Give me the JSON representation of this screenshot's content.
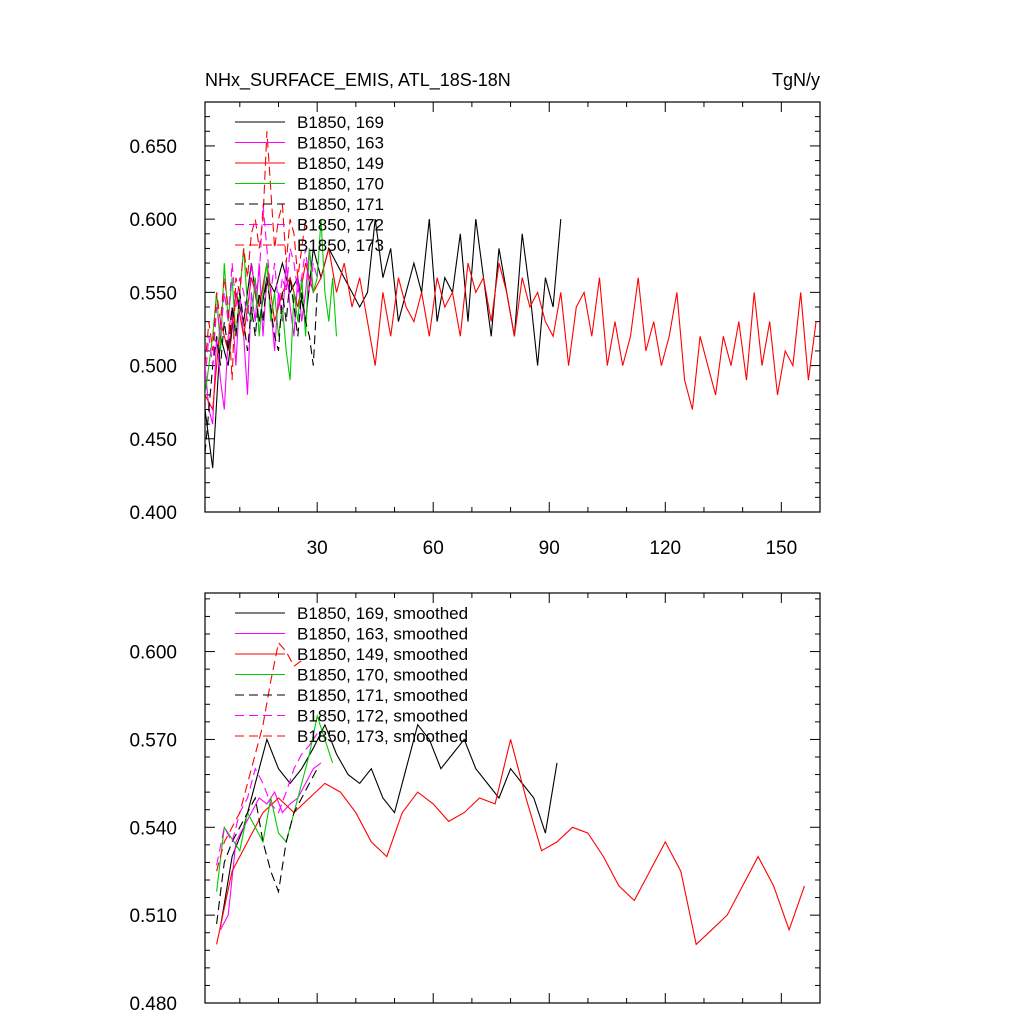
{
  "chart_data": [
    {
      "type": "line",
      "title": "NHx_SURFACE_EMIS, ATL_18S-18N",
      "units": "TgN/y",
      "xlim": [
        1,
        160
      ],
      "ylim": [
        0.4,
        0.68
      ],
      "x_ticks": [
        30,
        60,
        90,
        120,
        150
      ],
      "y_ticks": [
        0.4,
        0.45,
        0.5,
        0.55,
        0.6,
        0.65
      ],
      "y_tick_labels": [
        "0.400",
        "0.450",
        "0.500",
        "0.550",
        "0.600",
        "0.650"
      ],
      "x_tick_labels": [
        "30",
        "60",
        "90",
        "120",
        "150"
      ],
      "legend_position": "top-left",
      "grid": false,
      "series": [
        {
          "name": "B1850, 169",
          "color": "#000000",
          "dash": "solid",
          "x": [
            1,
            3,
            5,
            7,
            9,
            11,
            13,
            15,
            17,
            19,
            21,
            23,
            25,
            27,
            29,
            31,
            33,
            35,
            37,
            39,
            41,
            43,
            45,
            47,
            49,
            51,
            53,
            55,
            57,
            59,
            61,
            63,
            65,
            67,
            69,
            71,
            73,
            75,
            77,
            79,
            81,
            83,
            85,
            87,
            89,
            91,
            93
          ],
          "values": [
            0.47,
            0.43,
            0.52,
            0.5,
            0.55,
            0.53,
            0.57,
            0.53,
            0.56,
            0.55,
            0.57,
            0.55,
            0.56,
            0.53,
            0.58,
            0.56,
            0.58,
            0.57,
            0.56,
            0.55,
            0.54,
            0.55,
            0.6,
            0.56,
            0.58,
            0.53,
            0.55,
            0.57,
            0.55,
            0.6,
            0.53,
            0.56,
            0.55,
            0.59,
            0.53,
            0.6,
            0.56,
            0.52,
            0.58,
            0.55,
            0.52,
            0.59,
            0.55,
            0.5,
            0.56,
            0.54,
            0.6
          ]
        },
        {
          "name": "B1850, 163",
          "color": "#ff00ff",
          "dash": "solid",
          "x": [
            1,
            2,
            3,
            4,
            5,
            6,
            7,
            8,
            9,
            10,
            11,
            12,
            13,
            14,
            15,
            16,
            17,
            18,
            19,
            20,
            21,
            22,
            23,
            24,
            25,
            26,
            27,
            28,
            29
          ],
          "values": [
            0.5,
            0.47,
            0.46,
            0.52,
            0.49,
            0.47,
            0.52,
            0.54,
            0.5,
            0.55,
            0.52,
            0.48,
            0.55,
            0.53,
            0.57,
            0.52,
            0.56,
            0.54,
            0.51,
            0.55,
            0.53,
            0.57,
            0.54,
            0.52,
            0.56,
            0.53,
            0.55,
            0.58,
            0.55
          ]
        },
        {
          "name": "B1850, 149",
          "color": "#ff0000",
          "dash": "solid",
          "x": [
            1,
            3,
            5,
            7,
            9,
            11,
            13,
            15,
            17,
            19,
            21,
            23,
            25,
            27,
            29,
            31,
            33,
            35,
            37,
            39,
            41,
            43,
            45,
            47,
            49,
            51,
            53,
            55,
            57,
            59,
            61,
            63,
            65,
            67,
            69,
            71,
            73,
            75,
            77,
            79,
            81,
            83,
            85,
            87,
            89,
            91,
            93,
            95,
            97,
            99,
            101,
            103,
            105,
            107,
            109,
            111,
            113,
            115,
            117,
            119,
            121,
            123,
            125,
            127,
            129,
            131,
            133,
            135,
            137,
            139,
            141,
            143,
            145,
            147,
            149,
            151,
            153,
            155,
            157,
            159
          ],
          "values": [
            0.48,
            0.47,
            0.53,
            0.51,
            0.55,
            0.52,
            0.56,
            0.54,
            0.57,
            0.53,
            0.55,
            0.56,
            0.54,
            0.57,
            0.55,
            0.56,
            0.58,
            0.55,
            0.57,
            0.54,
            0.56,
            0.53,
            0.5,
            0.55,
            0.52,
            0.56,
            0.54,
            0.53,
            0.55,
            0.52,
            0.56,
            0.54,
            0.55,
            0.52,
            0.57,
            0.55,
            0.56,
            0.53,
            0.57,
            0.55,
            0.52,
            0.56,
            0.54,
            0.55,
            0.53,
            0.52,
            0.55,
            0.5,
            0.54,
            0.55,
            0.52,
            0.56,
            0.5,
            0.53,
            0.5,
            0.52,
            0.56,
            0.51,
            0.53,
            0.5,
            0.52,
            0.55,
            0.49,
            0.47,
            0.52,
            0.5,
            0.48,
            0.52,
            0.5,
            0.53,
            0.49,
            0.55,
            0.5,
            0.53,
            0.48,
            0.51,
            0.5,
            0.55,
            0.49,
            0.53
          ]
        },
        {
          "name": "B1850, 170",
          "color": "#00cc00",
          "dash": "solid",
          "x": [
            1,
            2,
            3,
            4,
            5,
            6,
            7,
            8,
            9,
            10,
            11,
            12,
            13,
            14,
            15,
            16,
            17,
            18,
            19,
            20,
            21,
            22,
            23,
            24,
            25,
            26,
            27,
            28,
            29,
            30,
            31,
            32,
            33,
            34,
            35
          ],
          "values": [
            0.48,
            0.5,
            0.52,
            0.55,
            0.51,
            0.57,
            0.53,
            0.56,
            0.52,
            0.55,
            0.58,
            0.54,
            0.53,
            0.56,
            0.52,
            0.55,
            0.57,
            0.53,
            0.55,
            0.52,
            0.54,
            0.51,
            0.49,
            0.55,
            0.53,
            0.56,
            0.52,
            0.58,
            0.55,
            0.56,
            0.6,
            0.55,
            0.53,
            0.56,
            0.52
          ]
        },
        {
          "name": "B1850, 171",
          "color": "#000000",
          "dash": "dash",
          "x": [
            1,
            2,
            3,
            4,
            5,
            6,
            7,
            8,
            9,
            10,
            11,
            12,
            13,
            14,
            15,
            16,
            17,
            18,
            19,
            20,
            21,
            22,
            23,
            24,
            25,
            26,
            27,
            28,
            29,
            30
          ],
          "values": [
            0.44,
            0.47,
            0.5,
            0.52,
            0.5,
            0.53,
            0.51,
            0.54,
            0.52,
            0.55,
            0.53,
            0.51,
            0.54,
            0.52,
            0.55,
            0.53,
            0.56,
            0.54,
            0.52,
            0.51,
            0.55,
            0.53,
            0.56,
            0.54,
            0.52,
            0.55,
            0.53,
            0.52,
            0.5,
            0.55
          ]
        },
        {
          "name": "B1850, 172",
          "color": "#ff00ff",
          "dash": "dash",
          "x": [
            1,
            2,
            3,
            4,
            5,
            6,
            7,
            8,
            9,
            10,
            11,
            12,
            13,
            14,
            15,
            16,
            17,
            18,
            19,
            20,
            21,
            22,
            23,
            24,
            25,
            26,
            27,
            28,
            29,
            30
          ],
          "values": [
            0.49,
            0.52,
            0.5,
            0.54,
            0.52,
            0.55,
            0.53,
            0.57,
            0.54,
            0.56,
            0.55,
            0.53,
            0.57,
            0.55,
            0.56,
            0.61,
            0.58,
            0.55,
            0.57,
            0.54,
            0.56,
            0.55,
            0.58,
            0.57,
            0.55,
            0.56,
            0.58,
            0.55,
            0.57,
            0.56
          ]
        },
        {
          "name": "B1850, 173",
          "color": "#ff0000",
          "dash": "dash",
          "x": [
            1,
            2,
            3,
            4,
            5,
            6,
            7,
            8,
            9,
            10,
            11,
            12,
            13,
            14,
            15,
            16,
            17,
            18,
            19,
            20,
            21,
            22,
            23,
            24,
            25,
            26,
            27
          ],
          "values": [
            0.5,
            0.53,
            0.51,
            0.55,
            0.53,
            0.56,
            0.54,
            0.49,
            0.56,
            0.55,
            0.58,
            0.56,
            0.59,
            0.6,
            0.58,
            0.6,
            0.66,
            0.62,
            0.58,
            0.6,
            0.61,
            0.57,
            0.6,
            0.59,
            0.56,
            0.58,
            0.6
          ]
        }
      ]
    },
    {
      "type": "line",
      "title": "",
      "xlim": [
        1,
        160
      ],
      "ylim": [
        0.48,
        0.62
      ],
      "x_ticks": [
        30,
        60,
        90,
        120,
        150
      ],
      "y_ticks": [
        0.48,
        0.51,
        0.54,
        0.57,
        0.6
      ],
      "y_tick_labels": [
        "0.480",
        "0.510",
        "0.540",
        "0.570",
        "0.600"
      ],
      "legend_position": "top-left",
      "grid": false,
      "series": [
        {
          "name": "B1850, 169, smoothed",
          "color": "#000000",
          "dash": "solid",
          "x": [
            5,
            8,
            11,
            14,
            17,
            20,
            23,
            26,
            29,
            32,
            35,
            38,
            41,
            44,
            47,
            50,
            53,
            56,
            59,
            62,
            65,
            68,
            71,
            74,
            77,
            80,
            83,
            86,
            89,
            92
          ],
          "values": [
            0.506,
            0.53,
            0.54,
            0.555,
            0.57,
            0.56,
            0.555,
            0.56,
            0.567,
            0.575,
            0.565,
            0.558,
            0.555,
            0.56,
            0.55,
            0.545,
            0.56,
            0.575,
            0.57,
            0.56,
            0.565,
            0.57,
            0.56,
            0.555,
            0.55,
            0.56,
            0.555,
            0.55,
            0.538,
            0.562
          ]
        },
        {
          "name": "B1850, 163, smoothed",
          "color": "#ff00ff",
          "dash": "solid",
          "x": [
            5,
            7,
            9,
            11,
            13,
            15,
            17,
            19,
            21,
            23,
            25,
            27,
            29,
            31
          ],
          "values": [
            0.505,
            0.51,
            0.535,
            0.54,
            0.545,
            0.55,
            0.548,
            0.552,
            0.545,
            0.548,
            0.55,
            0.555,
            0.56,
            0.562
          ]
        },
        {
          "name": "B1850, 149, smoothed",
          "color": "#ff0000",
          "dash": "solid",
          "x": [
            4,
            8,
            12,
            16,
            20,
            24,
            28,
            32,
            36,
            40,
            44,
            48,
            52,
            56,
            60,
            64,
            68,
            72,
            76,
            80,
            84,
            88,
            92,
            96,
            100,
            104,
            108,
            112,
            116,
            120,
            124,
            128,
            132,
            136,
            140,
            144,
            148,
            152,
            156
          ],
          "values": [
            0.5,
            0.525,
            0.535,
            0.545,
            0.55,
            0.545,
            0.55,
            0.555,
            0.552,
            0.545,
            0.535,
            0.53,
            0.545,
            0.552,
            0.548,
            0.542,
            0.545,
            0.55,
            0.548,
            0.57,
            0.55,
            0.532,
            0.535,
            0.54,
            0.538,
            0.53,
            0.52,
            0.515,
            0.525,
            0.535,
            0.525,
            0.5,
            0.505,
            0.51,
            0.52,
            0.53,
            0.52,
            0.505,
            0.52
          ]
        },
        {
          "name": "B1850, 170, smoothed",
          "color": "#00cc00",
          "dash": "solid",
          "x": [
            4,
            6,
            8,
            10,
            12,
            14,
            16,
            18,
            20,
            22,
            24,
            26,
            28,
            30,
            32,
            34
          ],
          "values": [
            0.518,
            0.54,
            0.536,
            0.532,
            0.545,
            0.54,
            0.535,
            0.55,
            0.538,
            0.535,
            0.545,
            0.555,
            0.565,
            0.578,
            0.57,
            0.562
          ]
        },
        {
          "name": "B1850, 171, smoothed",
          "color": "#000000",
          "dash": "dash",
          "x": [
            4,
            6,
            8,
            10,
            12,
            14,
            16,
            18,
            20,
            22,
            24,
            26,
            28,
            30
          ],
          "values": [
            0.507,
            0.528,
            0.535,
            0.54,
            0.545,
            0.55,
            0.535,
            0.525,
            0.518,
            0.535,
            0.545,
            0.55,
            0.555,
            0.56
          ]
        },
        {
          "name": "B1850, 172, smoothed",
          "color": "#ff00ff",
          "dash": "dash",
          "x": [
            4,
            6,
            8,
            10,
            12,
            14,
            16,
            18,
            20,
            22,
            24,
            26,
            28,
            30
          ],
          "values": [
            0.527,
            0.54,
            0.535,
            0.545,
            0.55,
            0.56,
            0.555,
            0.548,
            0.545,
            0.552,
            0.56,
            0.565,
            0.568,
            0.572
          ]
        },
        {
          "name": "B1850, 173, smoothed",
          "color": "#ff0000",
          "dash": "dash",
          "x": [
            4,
            6,
            8,
            10,
            12,
            14,
            16,
            18,
            20,
            22,
            24,
            26
          ],
          "values": [
            0.525,
            0.535,
            0.54,
            0.545,
            0.555,
            0.565,
            0.575,
            0.59,
            0.603,
            0.6,
            0.595,
            0.597
          ]
        }
      ]
    }
  ]
}
